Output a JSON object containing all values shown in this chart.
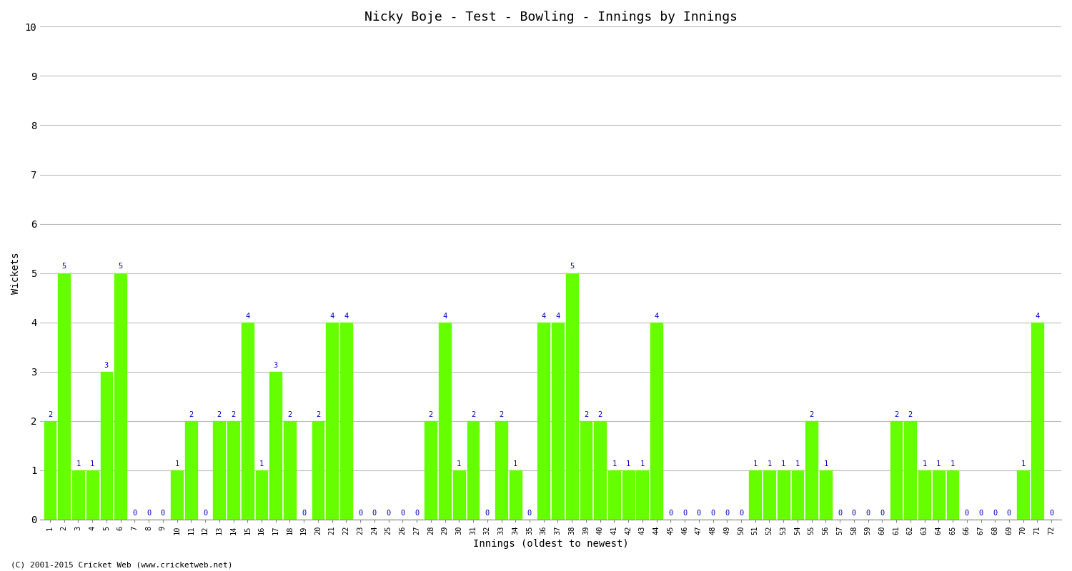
{
  "title": "Nicky Boje - Test - Bowling - Innings by Innings",
  "xlabel": "Innings (oldest to newest)",
  "ylabel": "Wickets",
  "bar_color": "#66ff00",
  "label_color": "#0000cc",
  "background_color": "#ffffff",
  "grid_color": "#bbbbbb",
  "ylim": [
    0,
    10
  ],
  "yticks": [
    0,
    1,
    2,
    3,
    4,
    5,
    6,
    7,
    8,
    9,
    10
  ],
  "copyright": "(C) 2001-2015 Cricket Web (www.cricketweb.net)",
  "innings": [
    1,
    2,
    3,
    4,
    5,
    6,
    7,
    8,
    9,
    10,
    11,
    12,
    13,
    14,
    15,
    16,
    17,
    18,
    19,
    20,
    21,
    22,
    23,
    24,
    25,
    26,
    27,
    28,
    29,
    30,
    31,
    32,
    33,
    34,
    35,
    36,
    37,
    38,
    39,
    40,
    41,
    42,
    43,
    44,
    45,
    46,
    47,
    48,
    49,
    50,
    51,
    52,
    53,
    54,
    55,
    56,
    57,
    58,
    59,
    60,
    61,
    62,
    63,
    64,
    65,
    66,
    67,
    68,
    69,
    70,
    71,
    72
  ],
  "wickets": [
    2,
    5,
    1,
    1,
    3,
    5,
    0,
    0,
    0,
    1,
    2,
    0,
    2,
    2,
    4,
    1,
    3,
    2,
    0,
    2,
    4,
    4,
    0,
    0,
    0,
    0,
    0,
    2,
    4,
    1,
    2,
    0,
    2,
    1,
    0,
    4,
    4,
    5,
    2,
    2,
    1,
    1,
    1,
    4,
    0,
    0,
    0,
    0,
    0,
    0,
    1,
    1,
    1,
    1,
    2,
    1,
    0,
    0,
    0,
    0,
    2,
    2,
    1,
    1,
    1,
    0,
    0,
    0,
    0,
    1,
    4,
    0
  ]
}
